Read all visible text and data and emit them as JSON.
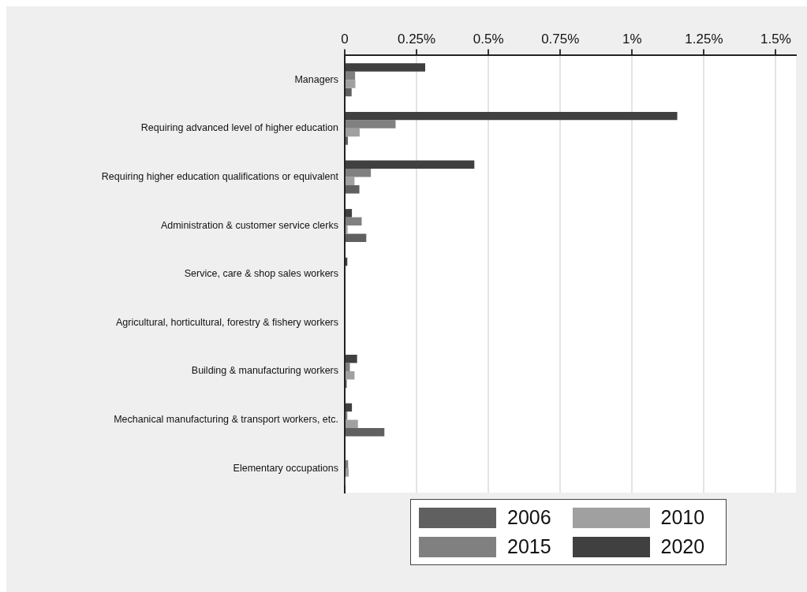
{
  "chart_data": {
    "type": "bar",
    "orientation": "horizontal",
    "categories": [
      "Managers",
      "Requiring advanced level of higher education",
      "Requiring higher education qualifications or equivalent",
      "Administration & customer service clerks",
      "Service, care & shop sales workers",
      "Agricultural, horticultural, forestry & fishery workers",
      "Building & manufacturing workers",
      "Mechanical manufacturing & transport workers, etc.",
      "Elementary occupations"
    ],
    "series": [
      {
        "name": "2006",
        "color": "#606060",
        "values": [
          0.024,
          0.011,
          0.051,
          0.075,
          null,
          0,
          0.007,
          0.138,
          0.001
        ]
      },
      {
        "name": "2010",
        "color": "#a0a0a0",
        "values": [
          0.037,
          0.052,
          0.034,
          0.01,
          null,
          0,
          0.034,
          0.046,
          0.014
        ]
      },
      {
        "name": "2015",
        "color": "#808080",
        "values": [
          0.036,
          0.177,
          0.091,
          0.059,
          null,
          0,
          0.018,
          0.009,
          0.012
        ]
      },
      {
        "name": "2020",
        "color": "#404040",
        "values": [
          0.28,
          1.157,
          0.451,
          0.025,
          0.009,
          0,
          0.043,
          0.025,
          null
        ]
      }
    ],
    "xlim": [
      0,
      1.57
    ],
    "xticks": [
      0,
      {
        "value": 0.25,
        "label": "0.25%"
      },
      {
        "value": 0.5,
        "label": "0.5%"
      },
      {
        "value": 0.75,
        "label": "0.75%"
      },
      {
        "value": 1,
        "label": "1%"
      },
      {
        "value": 1.25,
        "label": "1.25%"
      },
      {
        "value": 1.5,
        "label": "1.5%"
      }
    ],
    "grid": "x",
    "legend": "bottom"
  }
}
